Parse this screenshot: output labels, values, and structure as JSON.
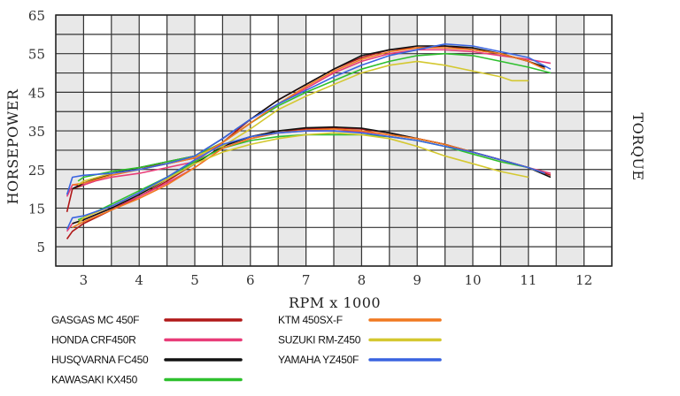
{
  "chart_data": {
    "type": "line",
    "title": "",
    "xlabel": "RPM x 1000",
    "ylabel": "HORSEPOWER",
    "y2label": "TORQUE",
    "xlim": [
      2.5,
      12.5
    ],
    "ylim": [
      0,
      65
    ],
    "x_ticks": [
      3,
      4,
      5,
      6,
      7,
      8,
      9,
      10,
      11,
      12
    ],
    "y_ticks": [
      5,
      15,
      25,
      35,
      45,
      55,
      65
    ],
    "grid": true,
    "series": [
      {
        "name": "GASGAS MC 450F",
        "color": "#b01818",
        "horsepower": [
          [
            2.7,
            14
          ],
          [
            2.8,
            20
          ],
          [
            3.0,
            21
          ],
          [
            3.2,
            22
          ],
          [
            3.5,
            24
          ],
          [
            4.0,
            25.5
          ],
          [
            4.5,
            26.5
          ],
          [
            5.0,
            28
          ],
          [
            5.5,
            32
          ],
          [
            6.0,
            38
          ],
          [
            6.5,
            43
          ],
          [
            7.0,
            47
          ],
          [
            7.5,
            51
          ],
          [
            8.0,
            54
          ],
          [
            8.5,
            56
          ],
          [
            9.0,
            56.5
          ],
          [
            9.5,
            57
          ],
          [
            10.0,
            56
          ],
          [
            10.5,
            55
          ],
          [
            11.0,
            53
          ],
          [
            11.3,
            51
          ]
        ],
        "torque": [
          [
            2.7,
            7
          ],
          [
            2.8,
            9
          ],
          [
            3.0,
            11
          ],
          [
            3.5,
            14.5
          ],
          [
            4.0,
            18
          ],
          [
            4.5,
            22
          ],
          [
            5.0,
            26.5
          ],
          [
            5.5,
            31
          ],
          [
            6.0,
            33.5
          ],
          [
            6.5,
            35
          ],
          [
            7.0,
            35.5
          ],
          [
            7.5,
            35.8
          ],
          [
            8.0,
            35.5
          ],
          [
            8.5,
            34.5
          ],
          [
            9.0,
            33
          ],
          [
            9.5,
            31.5
          ],
          [
            10.0,
            29.5
          ],
          [
            10.5,
            27.5
          ],
          [
            11.0,
            25.5
          ],
          [
            11.4,
            23.5
          ]
        ]
      },
      {
        "name": "HONDA CRF450R",
        "color": "#e83c78",
        "horsepower": [
          [
            2.7,
            18
          ],
          [
            2.8,
            21
          ],
          [
            3.0,
            21
          ],
          [
            3.2,
            22
          ],
          [
            3.5,
            23
          ],
          [
            4.0,
            24
          ],
          [
            4.5,
            25.5
          ],
          [
            5.0,
            27
          ],
          [
            5.5,
            32
          ],
          [
            6.0,
            37
          ],
          [
            6.5,
            42
          ],
          [
            7.0,
            46
          ],
          [
            7.5,
            50
          ],
          [
            8.0,
            53
          ],
          [
            8.5,
            55
          ],
          [
            9.0,
            56
          ],
          [
            9.5,
            56
          ],
          [
            10.0,
            55.5
          ],
          [
            10.5,
            54.5
          ],
          [
            11.0,
            53.5
          ],
          [
            11.4,
            52.5
          ]
        ],
        "torque": [
          [
            2.7,
            9
          ],
          [
            2.8,
            11
          ],
          [
            3.0,
            12
          ],
          [
            3.5,
            15
          ],
          [
            4.0,
            18
          ],
          [
            4.5,
            21.5
          ],
          [
            5.0,
            25.5
          ],
          [
            5.5,
            30.5
          ],
          [
            6.0,
            33
          ],
          [
            6.5,
            34.5
          ],
          [
            7.0,
            35
          ],
          [
            7.5,
            35
          ],
          [
            8.0,
            34.8
          ],
          [
            8.5,
            34
          ],
          [
            9.0,
            33
          ],
          [
            9.5,
            31.5
          ],
          [
            10.0,
            29.5
          ],
          [
            10.5,
            27.5
          ],
          [
            11.0,
            25.5
          ],
          [
            11.4,
            24
          ]
        ]
      },
      {
        "name": "HUSQVARNA FC450",
        "color": "#111111",
        "horsepower": [
          [
            2.8,
            20
          ],
          [
            3.0,
            21.5
          ],
          [
            3.5,
            24
          ],
          [
            4.0,
            25.5
          ],
          [
            4.5,
            27
          ],
          [
            5.0,
            28.5
          ],
          [
            5.5,
            33
          ],
          [
            6.0,
            38
          ],
          [
            6.5,
            43
          ],
          [
            7.0,
            47
          ],
          [
            7.5,
            51
          ],
          [
            8.0,
            54.5
          ],
          [
            8.5,
            56
          ],
          [
            9.0,
            57
          ],
          [
            9.5,
            57
          ],
          [
            10.0,
            56.5
          ],
          [
            10.5,
            55
          ],
          [
            11.0,
            53
          ],
          [
            11.3,
            51.5
          ]
        ],
        "torque": [
          [
            2.8,
            11
          ],
          [
            3.0,
            12
          ],
          [
            3.5,
            15
          ],
          [
            4.0,
            18.5
          ],
          [
            4.5,
            22.5
          ],
          [
            5.0,
            26.5
          ],
          [
            5.5,
            31
          ],
          [
            6.0,
            33.5
          ],
          [
            6.5,
            35
          ],
          [
            7.0,
            35.8
          ],
          [
            7.5,
            36
          ],
          [
            8.0,
            35.7
          ],
          [
            8.5,
            34.5
          ],
          [
            9.0,
            33
          ],
          [
            9.5,
            31.5
          ],
          [
            10.0,
            29.5
          ],
          [
            10.5,
            27.5
          ],
          [
            11.0,
            25.5
          ],
          [
            11.4,
            23
          ]
        ]
      },
      {
        "name": "KAWASAKI KX450",
        "color": "#2ec02e",
        "horsepower": [
          [
            2.9,
            22
          ],
          [
            3.0,
            23
          ],
          [
            3.5,
            24.5
          ],
          [
            4.0,
            25.5
          ],
          [
            4.5,
            27
          ],
          [
            5.0,
            28.5
          ],
          [
            5.5,
            32
          ],
          [
            6.0,
            37
          ],
          [
            6.5,
            41.5
          ],
          [
            7.0,
            45
          ],
          [
            7.5,
            48
          ],
          [
            8.0,
            51
          ],
          [
            8.5,
            53
          ],
          [
            9.0,
            54.5
          ],
          [
            9.5,
            55
          ],
          [
            10.0,
            54.5
          ],
          [
            10.5,
            53
          ],
          [
            11.0,
            51.5
          ],
          [
            11.4,
            50
          ]
        ],
        "torque": [
          [
            2.9,
            12
          ],
          [
            3.0,
            12.5
          ],
          [
            3.5,
            16
          ],
          [
            4.0,
            19.5
          ],
          [
            4.5,
            23
          ],
          [
            5.0,
            27
          ],
          [
            5.5,
            30.5
          ],
          [
            6.0,
            32.5
          ],
          [
            6.5,
            33.5
          ],
          [
            7.0,
            34
          ],
          [
            7.5,
            34
          ],
          [
            8.0,
            34
          ],
          [
            8.5,
            33.5
          ],
          [
            9.0,
            32.5
          ],
          [
            9.5,
            31
          ],
          [
            10.0,
            29
          ],
          [
            10.5,
            27
          ],
          [
            11.0,
            25.5
          ],
          [
            11.3,
            24
          ]
        ]
      },
      {
        "name": "KTM 450SX-F",
        "color": "#f07820",
        "horsepower": [
          [
            2.8,
            21
          ],
          [
            3.0,
            21.5
          ],
          [
            3.5,
            23.5
          ],
          [
            4.0,
            25
          ],
          [
            4.5,
            26.5
          ],
          [
            5.0,
            28
          ],
          [
            5.5,
            32
          ],
          [
            6.0,
            37
          ],
          [
            6.5,
            42
          ],
          [
            7.0,
            46.5
          ],
          [
            7.5,
            50.5
          ],
          [
            8.0,
            53.5
          ],
          [
            8.5,
            55.5
          ],
          [
            9.0,
            56.5
          ],
          [
            9.5,
            56.5
          ],
          [
            10.0,
            56
          ],
          [
            10.5,
            55
          ],
          [
            11.0,
            53
          ],
          [
            11.3,
            51
          ]
        ],
        "torque": [
          [
            2.8,
            10
          ],
          [
            3.0,
            11.5
          ],
          [
            3.5,
            14.5
          ],
          [
            4.0,
            17.5
          ],
          [
            4.5,
            21
          ],
          [
            5.0,
            25.5
          ],
          [
            5.5,
            30.5
          ],
          [
            6.0,
            33
          ],
          [
            6.5,
            34.5
          ],
          [
            7.0,
            35.2
          ],
          [
            7.5,
            35.5
          ],
          [
            8.0,
            35
          ],
          [
            8.5,
            34
          ],
          [
            9.0,
            33
          ],
          [
            9.5,
            31.5
          ],
          [
            10.0,
            29.5
          ],
          [
            10.5,
            27.5
          ],
          [
            11.0,
            25.5
          ],
          [
            11.3,
            24
          ]
        ]
      },
      {
        "name": "SUZUKI RM-Z450",
        "color": "#d4c830",
        "horsepower": [
          [
            2.9,
            21
          ],
          [
            3.0,
            22
          ],
          [
            3.5,
            24
          ],
          [
            4.0,
            25
          ],
          [
            4.5,
            26.5
          ],
          [
            5.0,
            28.5
          ],
          [
            5.5,
            31
          ],
          [
            6.0,
            35.5
          ],
          [
            6.5,
            40.5
          ],
          [
            7.0,
            44
          ],
          [
            7.5,
            47
          ],
          [
            8.0,
            50
          ],
          [
            8.5,
            52
          ],
          [
            9.0,
            53
          ],
          [
            9.5,
            52
          ],
          [
            10.0,
            50.5
          ],
          [
            10.5,
            49
          ],
          [
            10.7,
            48
          ],
          [
            11.0,
            48
          ]
        ],
        "torque": [
          [
            2.9,
            11
          ],
          [
            3.0,
            12.5
          ],
          [
            3.5,
            15.5
          ],
          [
            4.0,
            19
          ],
          [
            4.5,
            22.5
          ],
          [
            5.0,
            26.5
          ],
          [
            5.5,
            29.5
          ],
          [
            6.0,
            31.5
          ],
          [
            6.5,
            33
          ],
          [
            7.0,
            34
          ],
          [
            7.5,
            34.5
          ],
          [
            8.0,
            34
          ],
          [
            8.5,
            33
          ],
          [
            9.0,
            31
          ],
          [
            9.5,
            28.5
          ],
          [
            10.0,
            26.5
          ],
          [
            10.5,
            24.5
          ],
          [
            11.0,
            23
          ]
        ]
      },
      {
        "name": "YAMAHA YZ450F",
        "color": "#3a64e0",
        "horsepower": [
          [
            2.7,
            18.5
          ],
          [
            2.8,
            23
          ],
          [
            3.0,
            23.5
          ],
          [
            3.5,
            24
          ],
          [
            4.0,
            25
          ],
          [
            4.5,
            26.5
          ],
          [
            5.0,
            28.5
          ],
          [
            5.5,
            33
          ],
          [
            6.0,
            38
          ],
          [
            6.5,
            42
          ],
          [
            7.0,
            45.5
          ],
          [
            7.5,
            49
          ],
          [
            8.0,
            52
          ],
          [
            8.5,
            54.5
          ],
          [
            9.0,
            56
          ],
          [
            9.5,
            57.5
          ],
          [
            10.0,
            57
          ],
          [
            10.5,
            55.5
          ],
          [
            11.0,
            54
          ],
          [
            11.4,
            51
          ]
        ],
        "torque": [
          [
            2.7,
            9.5
          ],
          [
            2.8,
            12.5
          ],
          [
            3.0,
            13
          ],
          [
            3.5,
            15.5
          ],
          [
            4.0,
            19
          ],
          [
            4.5,
            23
          ],
          [
            5.0,
            27.5
          ],
          [
            5.5,
            31.5
          ],
          [
            6.0,
            33.5
          ],
          [
            6.5,
            34.5
          ],
          [
            7.0,
            35
          ],
          [
            7.5,
            35
          ],
          [
            8.0,
            34.5
          ],
          [
            8.5,
            33.5
          ],
          [
            9.0,
            32.5
          ],
          [
            9.5,
            31
          ],
          [
            10.0,
            29.5
          ],
          [
            10.5,
            27.5
          ],
          [
            11.0,
            25.5
          ],
          [
            11.3,
            24
          ]
        ]
      }
    ]
  }
}
